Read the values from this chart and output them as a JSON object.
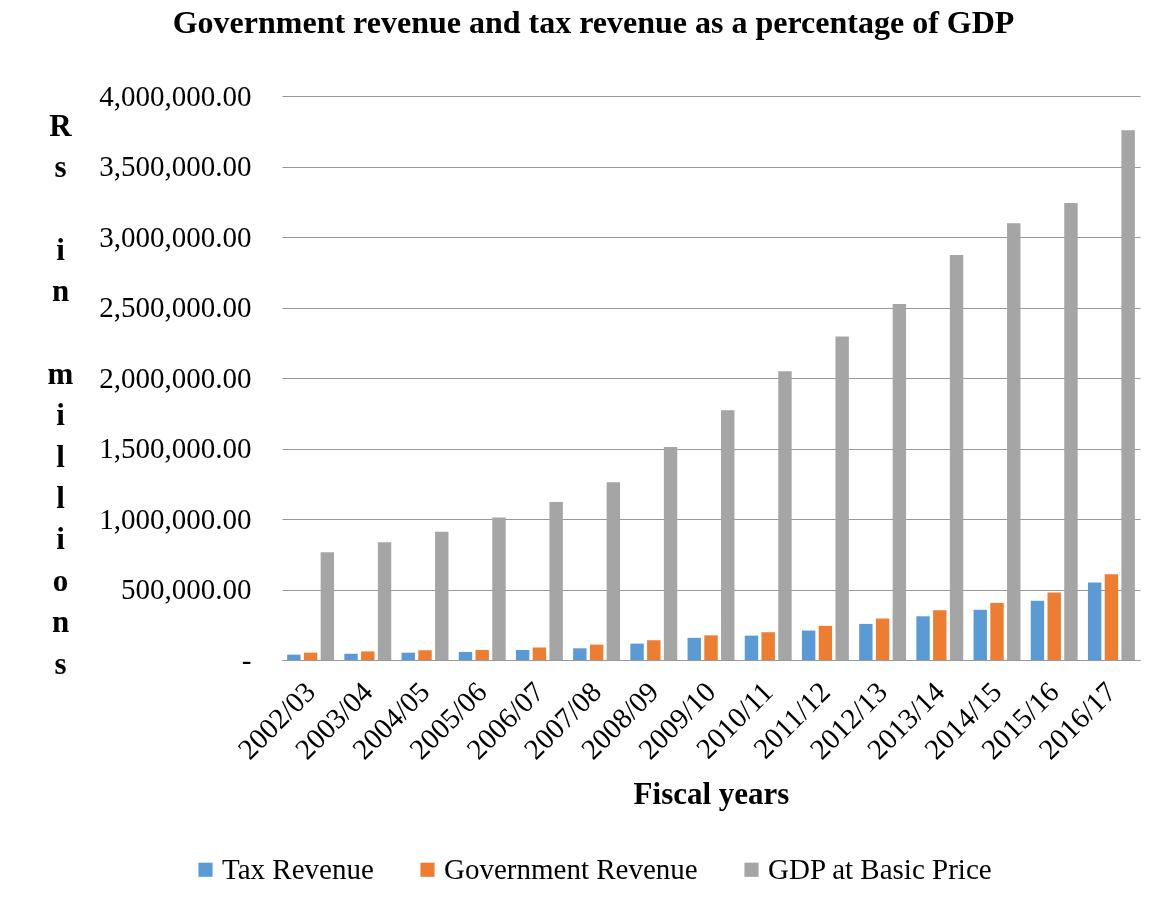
{
  "chart_data": {
    "type": "bar",
    "title": "Government revenue and tax revenue as a percentage of GDP",
    "xlabel": "Fiscal years",
    "ylabel": "Rs in millions",
    "categories": [
      "2002/03",
      "2003/04",
      "2004/05",
      "2005/06",
      "2006/07",
      "2007/08",
      "2008/09",
      "2009/10",
      "2010/11",
      "2011/12",
      "2012/13",
      "2013/14",
      "2014/15",
      "2015/16",
      "2016/17"
    ],
    "series": [
      {
        "name": "Tax Revenue",
        "color": "#5b9bd5",
        "values": [
          38000,
          45000,
          52000,
          57000,
          71000,
          83000,
          116000,
          157000,
          173000,
          209000,
          256000,
          310000,
          356000,
          420000,
          550000
        ]
      },
      {
        "name": "Government Revenue",
        "color": "#ed7d31",
        "values": [
          52000,
          61000,
          69000,
          71000,
          88000,
          109000,
          140000,
          175000,
          197000,
          242000,
          294000,
          353000,
          405000,
          479000,
          609000
        ]
      },
      {
        "name": "GDP at Basic Price",
        "color": "#a5a5a5",
        "values": [
          765000,
          835000,
          910000,
          1010000,
          1120000,
          1260000,
          1510000,
          1772000,
          2048000,
          2294000,
          2524000,
          2872000,
          3097000,
          3241000,
          3757000
        ]
      }
    ],
    "ylim": [
      0,
      4000000
    ],
    "yticks": [
      {
        "value": 0,
        "label": "-"
      },
      {
        "value": 500000,
        "label": "500,000.00"
      },
      {
        "value": 1000000,
        "label": "1,000,000.00"
      },
      {
        "value": 1500000,
        "label": "1,500,000.00"
      },
      {
        "value": 2000000,
        "label": "2,000,000.00"
      },
      {
        "value": 2500000,
        "label": "2,500,000.00"
      },
      {
        "value": 3000000,
        "label": "3,000,000.00"
      },
      {
        "value": 3500000,
        "label": "3,500,000.00"
      },
      {
        "value": 4000000,
        "label": "4,000,000.00"
      }
    ],
    "grid": "y",
    "legend": "bottom"
  }
}
